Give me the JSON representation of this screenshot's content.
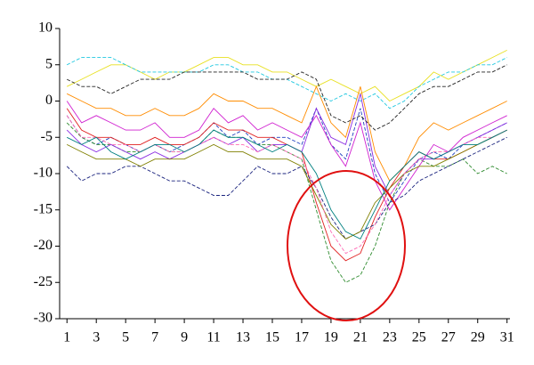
{
  "chart_data": {
    "type": "line",
    "x": [
      1,
      2,
      3,
      4,
      5,
      6,
      7,
      8,
      9,
      10,
      11,
      12,
      13,
      14,
      15,
      16,
      17,
      18,
      19,
      20,
      21,
      22,
      23,
      24,
      25,
      26,
      27,
      28,
      29,
      30,
      31
    ],
    "xlim": [
      0.5,
      31.2
    ],
    "xticks": [
      1,
      3,
      5,
      7,
      9,
      11,
      13,
      15,
      17,
      19,
      21,
      23,
      25,
      27,
      29,
      31
    ],
    "ylim": [
      -30,
      10
    ],
    "yticks": [
      -30,
      -25,
      -20,
      -15,
      -10,
      -5,
      0,
      5,
      10
    ],
    "series": [
      {
        "color": "#1f3fbf",
        "dashed": true,
        "values": [
          -2,
          -5,
          -6,
          -5,
          -6,
          -7,
          -6,
          -7,
          -6,
          -5,
          -3,
          -5,
          -4,
          -6,
          -5,
          -5,
          -6,
          -1,
          -6,
          -8,
          -1,
          -10,
          -14,
          -11,
          -8,
          -7,
          -8,
          -6,
          -5,
          -4,
          -3
        ]
      },
      {
        "color": "#2e8b2e",
        "dashed": true,
        "values": [
          -3,
          -5,
          -6,
          -6,
          -7,
          -7,
          -6,
          -7,
          -7,
          -6,
          -4,
          -5,
          -5,
          -6,
          -6,
          -7,
          -8,
          -15,
          -22,
          -25,
          -24,
          -20,
          -14,
          -10,
          -8,
          -9,
          -9,
          -8,
          -10,
          -9,
          -10
        ]
      },
      {
        "color": "#e02020",
        "dashed": false,
        "values": [
          -1,
          -4,
          -5,
          -5,
          -6,
          -6,
          -5,
          -6,
          -6,
          -5,
          -3,
          -4,
          -4,
          -5,
          -5,
          -6,
          -7,
          -14,
          -20,
          -22,
          -21,
          -16,
          -12,
          -9,
          -7,
          -8,
          -8,
          -7,
          -6,
          -5,
          -4
        ]
      },
      {
        "color": "#d020d0",
        "dashed": false,
        "values": [
          0,
          -3,
          -2,
          -3,
          -4,
          -4,
          -3,
          -5,
          -5,
          -4,
          -1,
          -3,
          -2,
          -4,
          -3,
          -4,
          -5,
          -2,
          -6,
          -9,
          -3,
          -11,
          -15,
          -12,
          -9,
          -6,
          -7,
          -5,
          -4,
          -3,
          -2
        ]
      },
      {
        "color": "#e8e020",
        "dashed": false,
        "values": [
          2,
          3,
          4,
          5,
          5,
          4,
          3,
          4,
          4,
          5,
          6,
          6,
          5,
          5,
          4,
          4,
          3,
          2,
          3,
          2,
          1,
          2,
          0,
          1,
          2,
          4,
          3,
          4,
          5,
          6,
          7
        ]
      },
      {
        "color": "#20c8e0",
        "dashed": true,
        "values": [
          5,
          6,
          6,
          6,
          5,
          4,
          4,
          4,
          4,
          4,
          5,
          5,
          4,
          4,
          3,
          3,
          2,
          1,
          0,
          1,
          0,
          1,
          -1,
          0,
          2,
          3,
          4,
          4,
          5,
          5,
          6
        ]
      },
      {
        "color": "#1a237e",
        "dashed": true,
        "values": [
          -9,
          -11,
          -10,
          -10,
          -9,
          -9,
          -10,
          -11,
          -11,
          -12,
          -13,
          -13,
          -11,
          -9,
          -10,
          -10,
          -9,
          -12,
          -16,
          -19,
          -18,
          -17,
          -14,
          -13,
          -11,
          -10,
          -9,
          -8,
          -7,
          -6,
          -5
        ]
      },
      {
        "color": "#8a2be2",
        "dashed": false,
        "values": [
          -4,
          -6,
          -7,
          -6,
          -7,
          -8,
          -7,
          -8,
          -7,
          -6,
          -5,
          -6,
          -5,
          -7,
          -6,
          -6,
          -7,
          -1,
          -5,
          -6,
          1,
          -9,
          -13,
          -10,
          -8,
          -8,
          -7,
          -6,
          -5,
          -4,
          -3
        ]
      },
      {
        "color": "#808000",
        "dashed": false,
        "values": [
          -6,
          -7,
          -8,
          -8,
          -8,
          -9,
          -8,
          -8,
          -8,
          -7,
          -6,
          -7,
          -7,
          -8,
          -8,
          -8,
          -9,
          -13,
          -17,
          -19,
          -18,
          -14,
          -12,
          -10,
          -9,
          -9,
          -8,
          -7,
          -6,
          -5,
          -4
        ]
      },
      {
        "color": "#ff8c00",
        "dashed": false,
        "values": [
          1,
          0,
          -1,
          -1,
          -2,
          -2,
          -1,
          -2,
          -2,
          -1,
          1,
          0,
          0,
          -1,
          -1,
          -2,
          -3,
          2,
          -3,
          -5,
          2,
          -7,
          -11,
          -9,
          -5,
          -3,
          -4,
          -3,
          -2,
          -1,
          0
        ]
      },
      {
        "color": "#ff69b4",
        "dashed": true,
        "values": [
          -2,
          -5,
          -5,
          -6,
          -6,
          -7,
          -6,
          -7,
          -7,
          -6,
          -5,
          -6,
          -6,
          -7,
          -6,
          -7,
          -8,
          -12,
          -18,
          -21,
          -20,
          -17,
          -13,
          -10,
          -8,
          -7,
          -7,
          -6,
          -5,
          -5,
          -4
        ]
      },
      {
        "color": "#222222",
        "dashed": true,
        "values": [
          3,
          2,
          2,
          1,
          2,
          3,
          3,
          3,
          4,
          4,
          4,
          4,
          4,
          3,
          3,
          3,
          4,
          3,
          -2,
          -3,
          -2,
          -4,
          -3,
          -1,
          1,
          2,
          2,
          3,
          4,
          4,
          5
        ]
      },
      {
        "color": "#008080",
        "dashed": false,
        "values": [
          -5,
          -6,
          -5,
          -7,
          -8,
          -7,
          -6,
          -6,
          -7,
          -6,
          -4,
          -5,
          -5,
          -6,
          -7,
          -6,
          -7,
          -10,
          -15,
          -18,
          -19,
          -15,
          -11,
          -9,
          -7,
          -8,
          -7,
          -6,
          -6,
          -5,
          -4
        ]
      }
    ]
  }
}
